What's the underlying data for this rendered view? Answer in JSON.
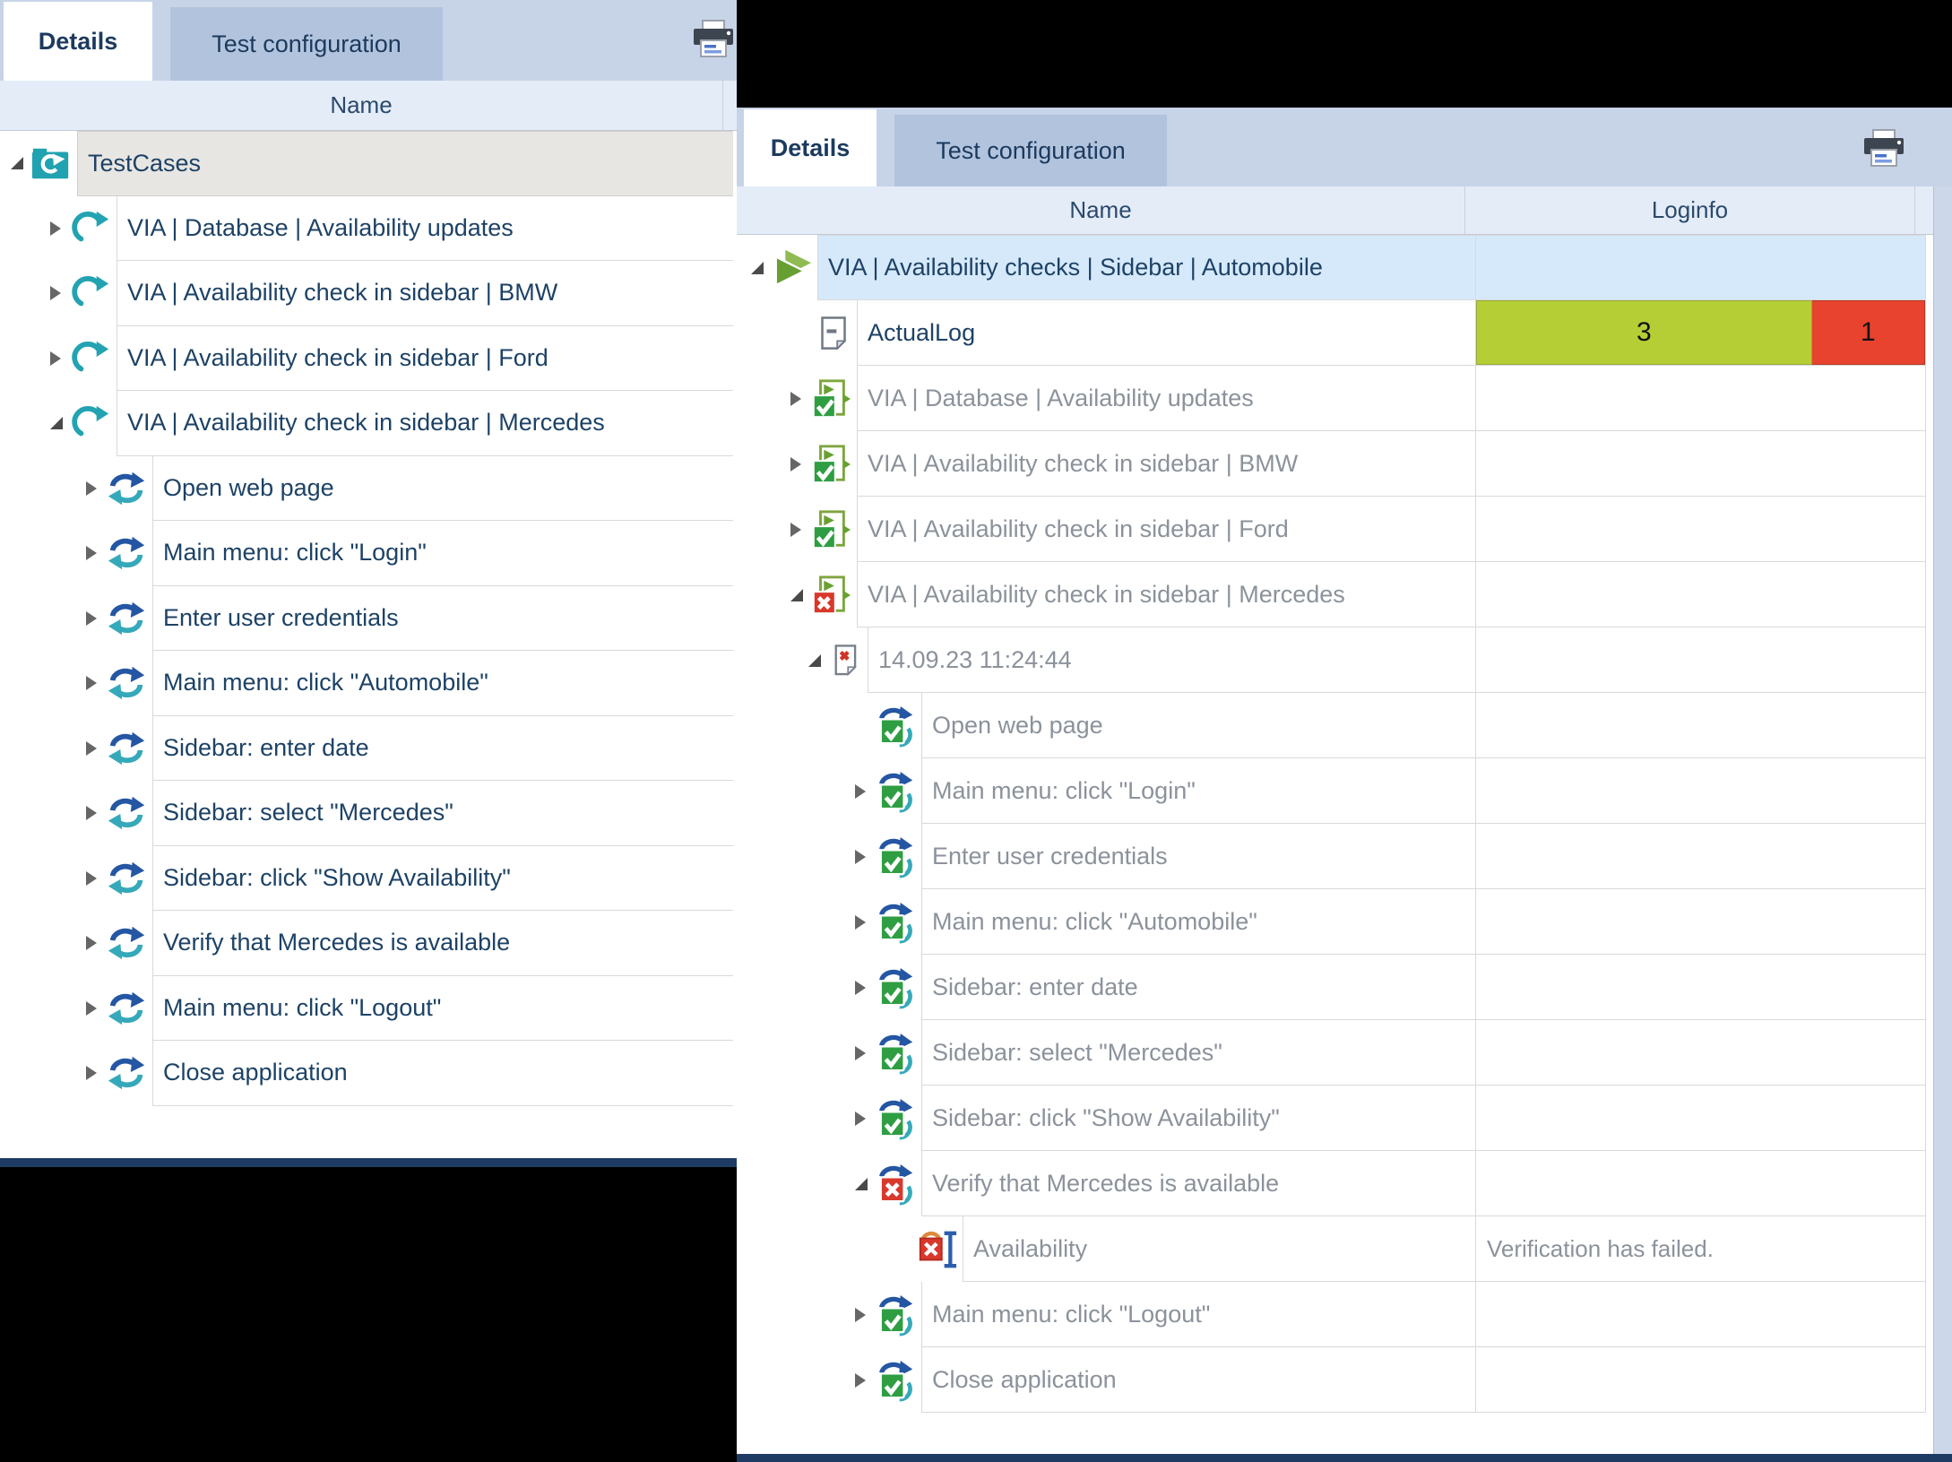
{
  "colors": {
    "tab_strip": "#c7d4e7",
    "tab_inactive": "#b2c4dd",
    "selected_row": "#d6e9fb",
    "teal_accent": "#23a3b2",
    "blue_arrow": "#2456a3",
    "pass_green": "#2f9e43",
    "fail_red": "#d8392c",
    "log_pass_cell": "#b5ce35",
    "log_fail_cell": "#e8432e",
    "root_row_gray": "#e8e6e2",
    "navy_edge": "#1e3c63",
    "text_dark": "#1d4266",
    "text_gray": "#8b929b"
  },
  "left_panel": {
    "tabs": [
      {
        "label": "Details",
        "active": true
      },
      {
        "label": "Test configuration",
        "active": false
      }
    ],
    "printer_icon": "printer-icon",
    "columns": [
      "Name"
    ],
    "rows": [
      {
        "depth": 0,
        "expander": "expanded",
        "icon": "folder-refresh",
        "label": "TestCases",
        "style": "rootgray",
        "text": "dark"
      },
      {
        "depth": 1,
        "expander": "collapsed",
        "icon": "refresh-teal",
        "label": "VIA | Database | Availability updates",
        "text": "dark"
      },
      {
        "depth": 1,
        "expander": "collapsed",
        "icon": "refresh-teal",
        "label": "VIA | Availability check in sidebar | BMW",
        "text": "dark"
      },
      {
        "depth": 1,
        "expander": "collapsed",
        "icon": "refresh-teal",
        "label": "VIA | Availability check in sidebar | Ford",
        "text": "dark"
      },
      {
        "depth": 1,
        "expander": "expanded",
        "icon": "refresh-teal",
        "label": "VIA | Availability check in sidebar | Mercedes",
        "text": "dark"
      },
      {
        "depth": 2,
        "expander": "collapsed",
        "icon": "sync-blue-teal",
        "label": "Open web page",
        "text": "dark"
      },
      {
        "depth": 2,
        "expander": "collapsed",
        "icon": "sync-blue-teal",
        "label": "Main menu: click \"Login\"",
        "text": "dark"
      },
      {
        "depth": 2,
        "expander": "collapsed",
        "icon": "sync-blue-teal",
        "label": "Enter user credentials",
        "text": "dark"
      },
      {
        "depth": 2,
        "expander": "collapsed",
        "icon": "sync-blue-teal",
        "label": "Main menu: click \"Automobile\"",
        "text": "dark"
      },
      {
        "depth": 2,
        "expander": "collapsed",
        "icon": "sync-blue-teal",
        "label": "Sidebar: enter date",
        "text": "dark"
      },
      {
        "depth": 2,
        "expander": "collapsed",
        "icon": "sync-blue-teal",
        "label": "Sidebar: select \"Mercedes\"",
        "text": "dark"
      },
      {
        "depth": 2,
        "expander": "collapsed",
        "icon": "sync-blue-teal",
        "label": "Sidebar: click \"Show Availability\"",
        "text": "dark"
      },
      {
        "depth": 2,
        "expander": "collapsed",
        "icon": "sync-blue-teal",
        "label": "Verify that Mercedes is available",
        "text": "dark"
      },
      {
        "depth": 2,
        "expander": "collapsed",
        "icon": "sync-blue-teal",
        "label": "Main menu: click \"Logout\"",
        "text": "dark"
      },
      {
        "depth": 2,
        "expander": "collapsed",
        "icon": "sync-blue-teal",
        "label": "Close application",
        "text": "dark"
      }
    ]
  },
  "right_panel": {
    "tabs": [
      {
        "label": "Details",
        "active": true
      },
      {
        "label": "Test configuration",
        "active": false
      }
    ],
    "printer_icon": "printer-icon",
    "columns": [
      "Name",
      "Loginfo"
    ],
    "rows": [
      {
        "depth": 0,
        "expander": "expanded",
        "icon": "play-green",
        "label": "VIA | Availability checks | Sidebar | Automobile",
        "text": "dark",
        "selected": true
      },
      {
        "depth": 1,
        "icon": "log-note",
        "label": "ActualLog",
        "text": "dark",
        "log_counts": {
          "pass": "3",
          "fail": "1"
        }
      },
      {
        "depth": 1,
        "expander": "collapsed",
        "icon": "testcase-pass",
        "label": "VIA | Database | Availability updates",
        "text": "gray"
      },
      {
        "depth": 1,
        "expander": "collapsed",
        "icon": "testcase-pass",
        "label": "VIA | Availability check in sidebar | BMW",
        "text": "gray"
      },
      {
        "depth": 1,
        "expander": "collapsed",
        "icon": "testcase-pass",
        "label": "VIA | Availability check in sidebar | Ford",
        "text": "gray"
      },
      {
        "depth": 1,
        "expander": "expanded",
        "icon": "testcase-fail",
        "label": "VIA | Availability check in sidebar | Mercedes",
        "text": "gray"
      },
      {
        "depth": 2,
        "expander": "expanded",
        "icon": "page-fail",
        "label": "14.09.23 11:24:44",
        "text": "gray"
      },
      {
        "depth": 3,
        "icon": "step-pass",
        "label": "Open web page",
        "text": "gray"
      },
      {
        "depth": 3,
        "expander": "collapsed",
        "icon": "step-pass",
        "label": "Main menu: click \"Login\"",
        "text": "gray"
      },
      {
        "depth": 3,
        "expander": "collapsed",
        "icon": "step-pass",
        "label": "Enter user credentials",
        "text": "gray"
      },
      {
        "depth": 3,
        "expander": "collapsed",
        "icon": "step-pass",
        "label": "Main menu: click \"Automobile\"",
        "text": "gray"
      },
      {
        "depth": 3,
        "expander": "collapsed",
        "icon": "step-pass",
        "label": "Sidebar: enter date",
        "text": "gray"
      },
      {
        "depth": 3,
        "expander": "collapsed",
        "icon": "step-pass",
        "label": "Sidebar: select \"Mercedes\"",
        "text": "gray"
      },
      {
        "depth": 3,
        "expander": "collapsed",
        "icon": "step-pass",
        "label": "Sidebar: click \"Show Availability\"",
        "text": "gray"
      },
      {
        "depth": 3,
        "expander": "expanded",
        "icon": "step-fail",
        "label": "Verify that Mercedes is available",
        "text": "gray"
      },
      {
        "depth": 4,
        "icon": "verify-fail",
        "label": "Availability",
        "text": "gray",
        "loginfo_text": "Verification has failed."
      },
      {
        "depth": 3,
        "expander": "collapsed",
        "icon": "step-pass",
        "label": "Main menu: click \"Logout\"",
        "text": "gray"
      },
      {
        "depth": 3,
        "expander": "collapsed",
        "icon": "step-pass",
        "label": "Close application",
        "text": "gray"
      }
    ]
  }
}
